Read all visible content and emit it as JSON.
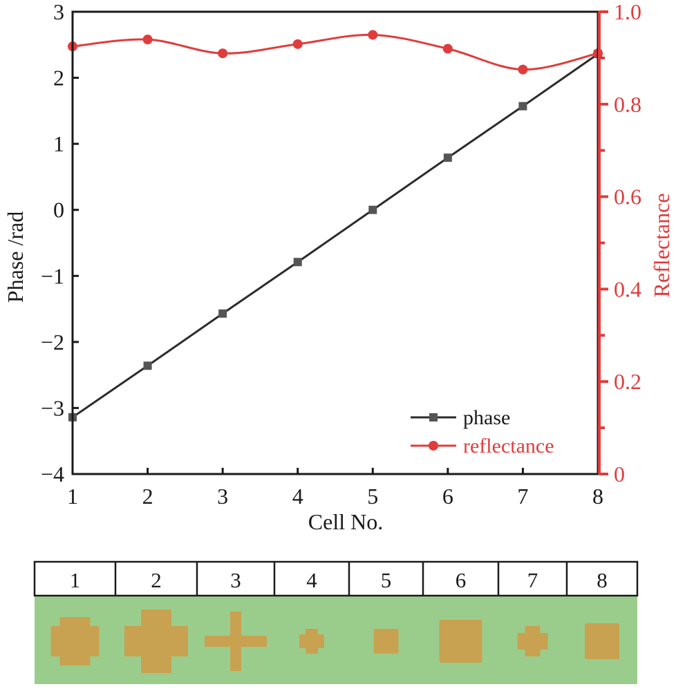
{
  "chart_data": {
    "type": "line",
    "x": [
      1,
      2,
      3,
      4,
      5,
      6,
      7,
      8
    ],
    "xlabel": "Cell No.",
    "xlim": [
      1,
      8
    ],
    "xticks": [
      "1",
      "2",
      "3",
      "4",
      "5",
      "6",
      "7",
      "8"
    ],
    "ylabel_left": "Phase /rad",
    "ylim_left": [
      -4,
      3
    ],
    "yticks_left": [
      "3",
      "2",
      "1",
      "0",
      "−1",
      "−2",
      "−3",
      "−4"
    ],
    "ylabel_right": "Reflectance",
    "ylim_right": [
      0,
      1.0
    ],
    "yticks_right": [
      "1.0",
      "0.8",
      "0.6",
      "0.4",
      "0.2",
      "0"
    ],
    "grid": false,
    "legend_position": "bottom-right",
    "series": [
      {
        "name": "phase",
        "axis": "left",
        "marker": "square",
        "color": "#2b2b2b",
        "values": [
          -3.14,
          -2.36,
          -1.57,
          -0.79,
          0.0,
          0.79,
          1.57,
          2.36
        ]
      },
      {
        "name": "reflectance",
        "axis": "right",
        "marker": "circle",
        "color": "#e03c3c",
        "values": [
          0.925,
          0.94,
          0.91,
          0.93,
          0.95,
          0.92,
          0.875,
          0.91
        ]
      }
    ]
  },
  "cell_table": {
    "labels": [
      "1",
      "2",
      "3",
      "4",
      "5",
      "6",
      "7",
      "8"
    ],
    "shapes": [
      "rounded-cross-large",
      "cross-wide",
      "thin-cross",
      "small-octagon",
      "small-square",
      "large-square",
      "medium-octagon",
      "medium-square"
    ],
    "colors": {
      "substrate": "#9acd8c",
      "patch": "#c8a250",
      "header_bg": "#ffffff",
      "border": "#1a1a1a"
    }
  }
}
